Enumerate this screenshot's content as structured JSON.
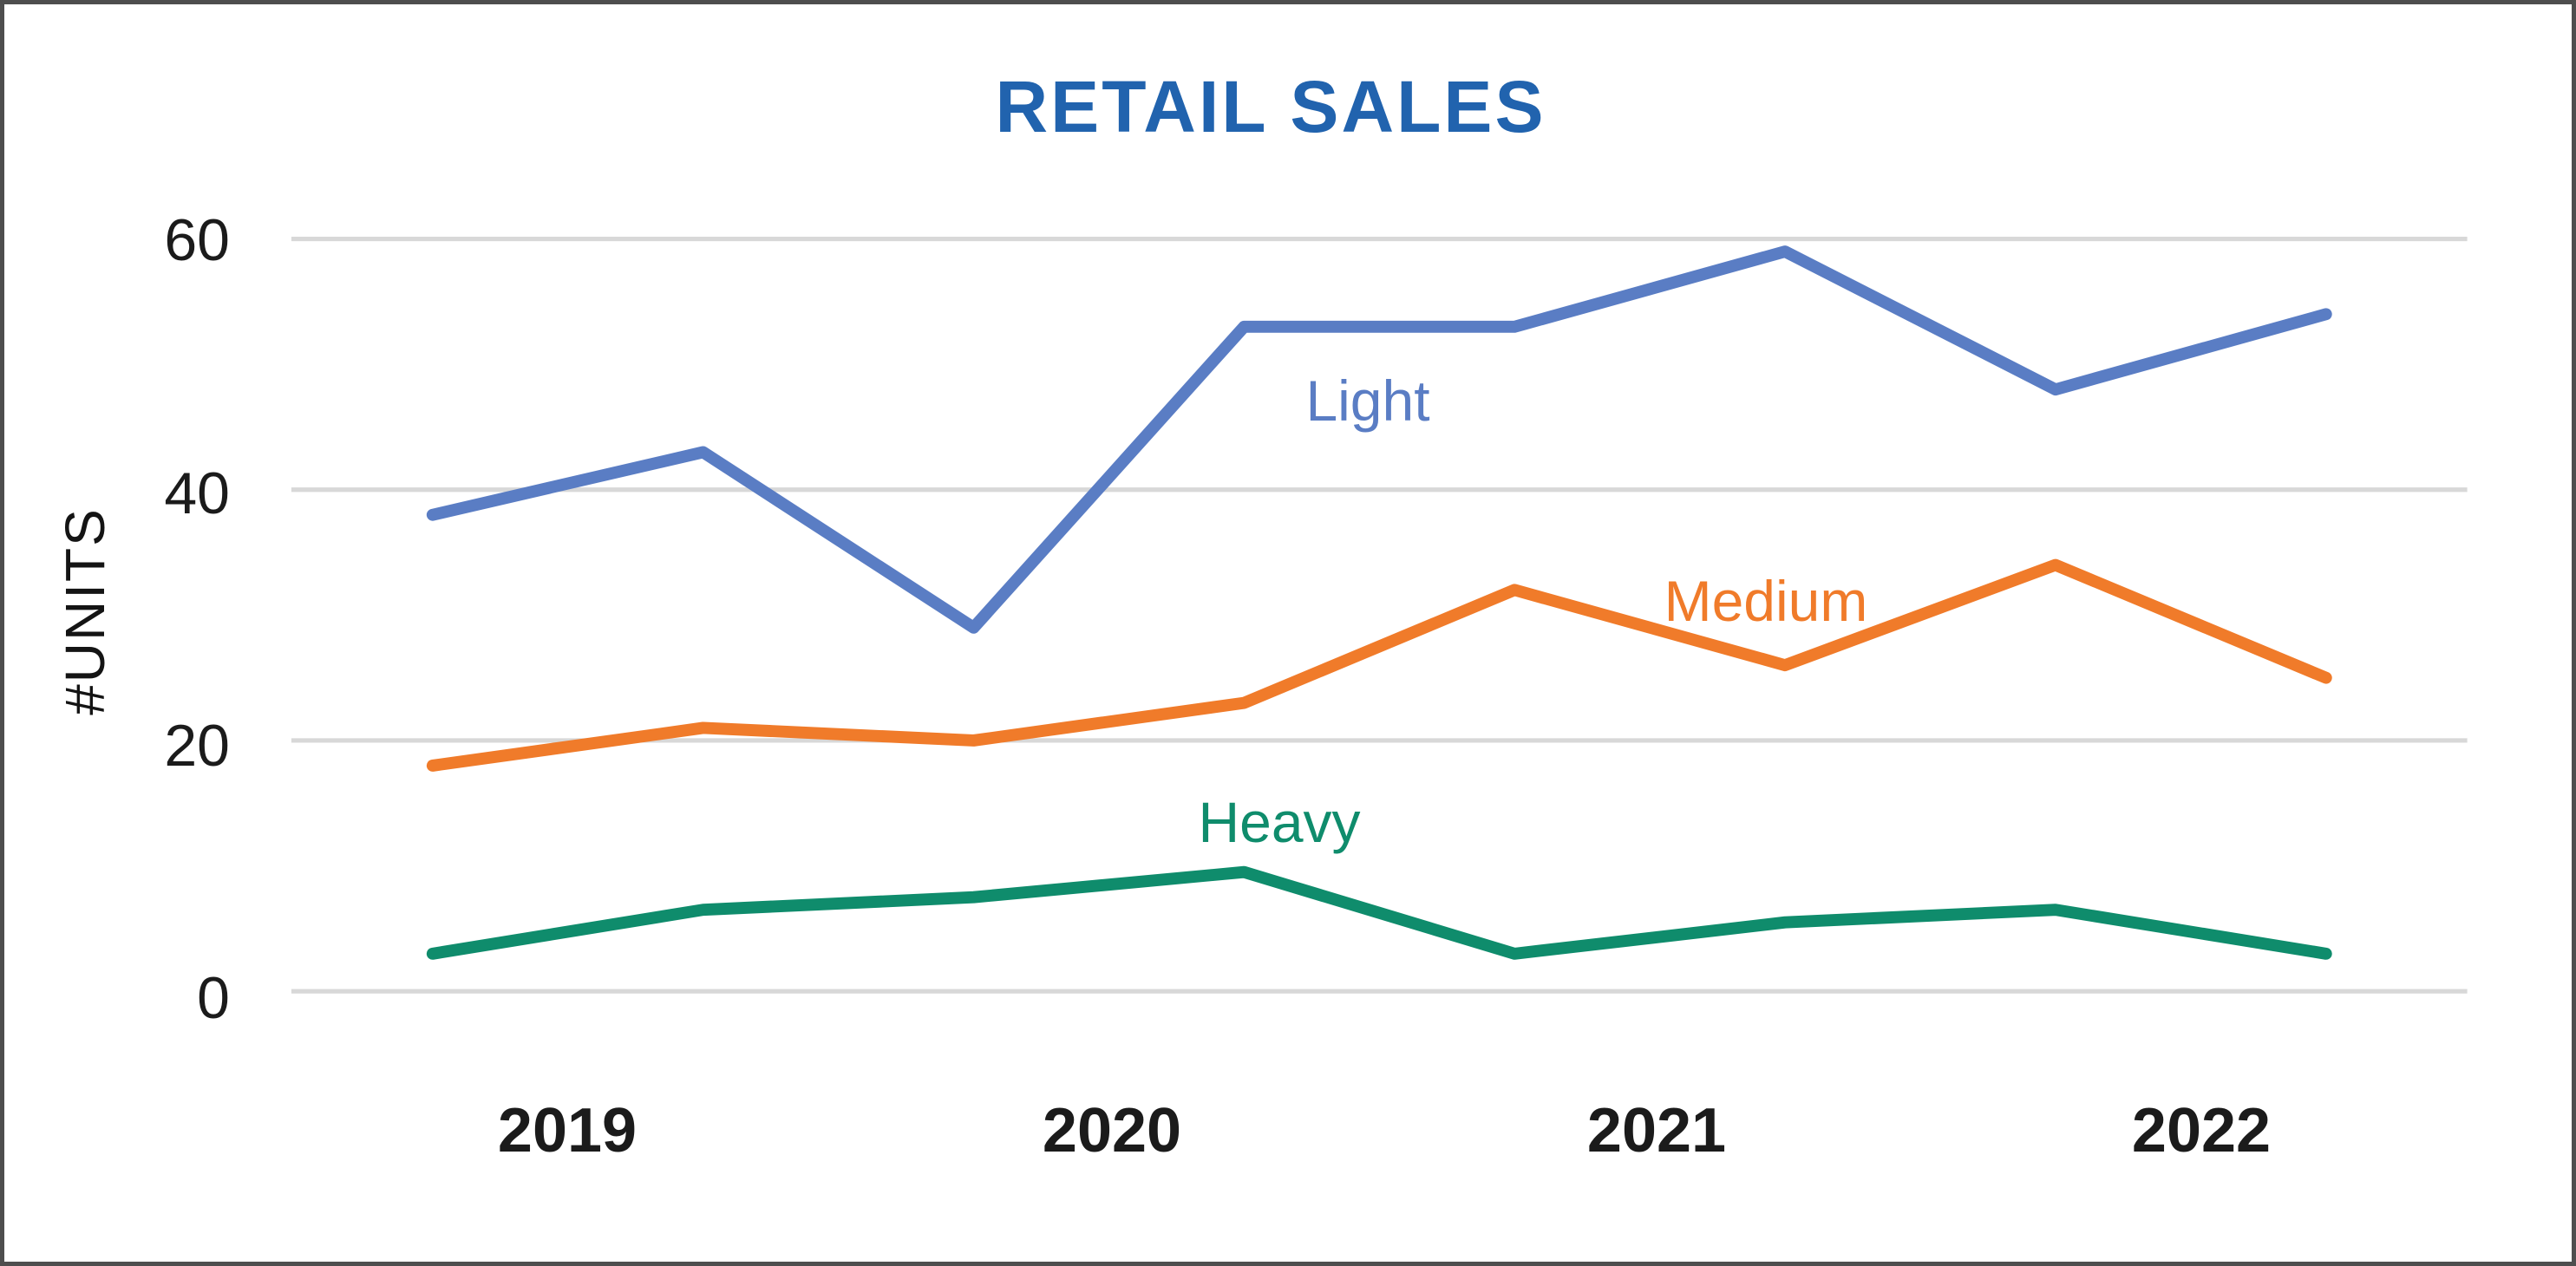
{
  "chart_data": {
    "type": "line",
    "title": "RETAIL SALES",
    "xlabel": "",
    "ylabel": "#UNITS",
    "y_ticks": [
      0,
      20,
      40,
      60
    ],
    "ylim": [
      0,
      65
    ],
    "grid": "horizontal",
    "legend": "inline-labels-next-to-lines",
    "x_tick_labels": [
      "2019",
      "2020",
      "2021",
      "2022"
    ],
    "n_points": 8,
    "x_tick_position": "centered between the two half-year points of each year",
    "series": [
      {
        "name": "Light",
        "color": "#5a7dc4",
        "values": [
          38,
          43,
          29,
          53,
          53,
          59,
          48,
          54
        ]
      },
      {
        "name": "Medium",
        "color": "#f07b2a",
        "values": [
          18,
          21,
          20,
          23,
          32,
          26,
          34,
          25
        ]
      },
      {
        "name": "Heavy",
        "color": "#0f8c6c",
        "values": [
          3,
          6.5,
          7.5,
          9.5,
          3,
          5.5,
          6.5,
          3
        ]
      }
    ]
  },
  "colors": {
    "title": "#2163ae",
    "gridline": "#d8d8d8",
    "axis_text": "#1b1b1b",
    "frame_border": "#4e4e4e",
    "background": "#ffffff"
  }
}
